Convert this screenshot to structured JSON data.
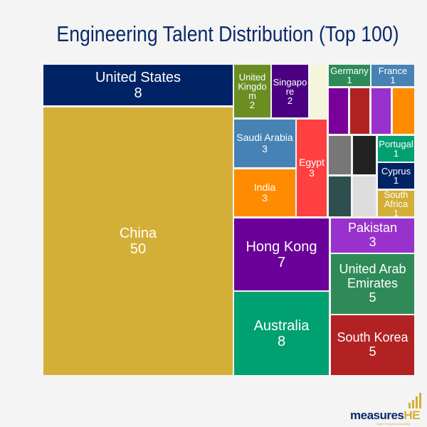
{
  "chart_data": {
    "type": "treemap",
    "title": "Engineering Talent Distribution (Top 100)",
    "tiles": [
      {
        "name": "United States",
        "value": 8,
        "color": "#002366"
      },
      {
        "name": "China",
        "value": 50,
        "color": "#D4AF37"
      },
      {
        "name": "United Kingdom",
        "value": 2,
        "color": "#6B8E23"
      },
      {
        "name": "Singapore",
        "value": 2,
        "color": "#4B0082"
      },
      {
        "name": "",
        "value": null,
        "color": "#F5F5DC"
      },
      {
        "name": "Saudi Arabia",
        "value": 3,
        "color": "#4682B4"
      },
      {
        "name": "India",
        "value": 3,
        "color": "#FF8C00"
      },
      {
        "name": "Egypt",
        "value": 3,
        "color": "#FF4040"
      },
      {
        "name": "Germany",
        "value": 1,
        "color": "#2E8B57"
      },
      {
        "name": "France",
        "value": 1,
        "color": "#4682B4"
      },
      {
        "name": "",
        "value": null,
        "color": "#7B0099"
      },
      {
        "name": "",
        "value": null,
        "color": "#B22222"
      },
      {
        "name": "",
        "value": null,
        "color": "#9932CC"
      },
      {
        "name": "",
        "value": null,
        "color": "#FF8C00"
      },
      {
        "name": "",
        "value": null,
        "color": "#777777"
      },
      {
        "name": "",
        "value": null,
        "color": "#222222"
      },
      {
        "name": "",
        "value": null,
        "color": "#2F4F4F"
      },
      {
        "name": "",
        "value": null,
        "color": "#DDDDDD"
      },
      {
        "name": "Portugal",
        "value": 1,
        "color": "#00A070"
      },
      {
        "name": "Cyprus",
        "value": 1,
        "color": "#002366"
      },
      {
        "name": "South Africa",
        "value": 1,
        "color": "#D4AF37"
      },
      {
        "name": "Hong Kong",
        "value": 7,
        "color": "#6A0099"
      },
      {
        "name": "Australia",
        "value": 8,
        "color": "#00A070"
      },
      {
        "name": "Pakistan",
        "value": 3,
        "color": "#9932CC"
      },
      {
        "name": "United Arab Emirates",
        "value": 5,
        "color": "#2E8B57"
      },
      {
        "name": "South Korea",
        "value": 5,
        "color": "#B22222"
      }
    ]
  },
  "logo": {
    "text_main": "measures",
    "text_accent": "HE",
    "tagline": "Higher Education Analytics"
  }
}
